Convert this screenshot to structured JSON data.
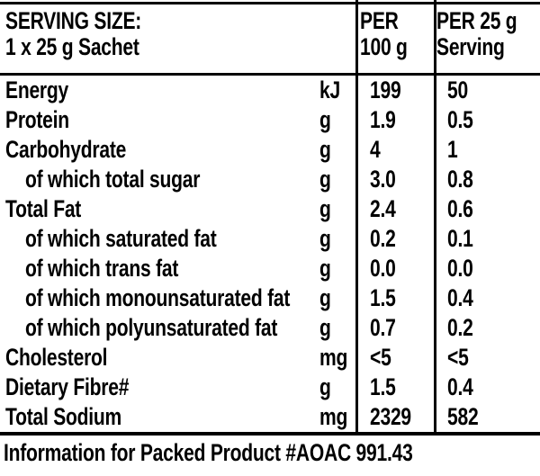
{
  "header": {
    "serving_size_line1": "SERVING SIZE:",
    "serving_size_line2": "1 x 25 g Sachet",
    "per_100g_line1": "PER",
    "per_100g_line2": "100 g",
    "per_25g_line1": "PER 25 g",
    "per_25g_line2": "Serving"
  },
  "rows": [
    {
      "label": "Energy",
      "unit": "kJ",
      "per_100g": "199",
      "per_25g": "50"
    },
    {
      "label": "Protein",
      "unit": "g",
      "per_100g": "1.9",
      "per_25g": "0.5"
    },
    {
      "label": "Carbohydrate",
      "unit": "g",
      "per_100g": "4",
      "per_25g": "1"
    },
    {
      "label": "of which total sugar",
      "unit": "g",
      "per_100g": "3.0",
      "per_25g": "0.8"
    },
    {
      "label": "Total Fat",
      "unit": "g",
      "per_100g": "2.4",
      "per_25g": "0.6"
    },
    {
      "label": "of which saturated fat",
      "unit": "g",
      "per_100g": "0.2",
      "per_25g": "0.1"
    },
    {
      "label": "of which trans fat",
      "unit": "g",
      "per_100g": "0.0",
      "per_25g": "0.0"
    },
    {
      "label": "of which monounsaturated fat",
      "unit": "g",
      "per_100g": "1.5",
      "per_25g": "0.4"
    },
    {
      "label": "of which polyunsaturated fat",
      "unit": "g",
      "per_100g": "0.7",
      "per_25g": "0.2"
    },
    {
      "label": "Cholesterol",
      "unit": "mg",
      "per_100g": "<5",
      "per_25g": "<5"
    },
    {
      "label": "Dietary Fibre#",
      "unit": "g",
      "per_100g": "1.5",
      "per_25g": "0.4"
    },
    {
      "label": "Total Sodium",
      "unit": "mg",
      "per_100g": "2329",
      "per_25g": "582"
    }
  ],
  "footer": {
    "text": "Information for Packed Product #AOAC 991.43"
  },
  "colors": {
    "text": "#000000",
    "background": "#ffffff",
    "rule": "#000000"
  }
}
